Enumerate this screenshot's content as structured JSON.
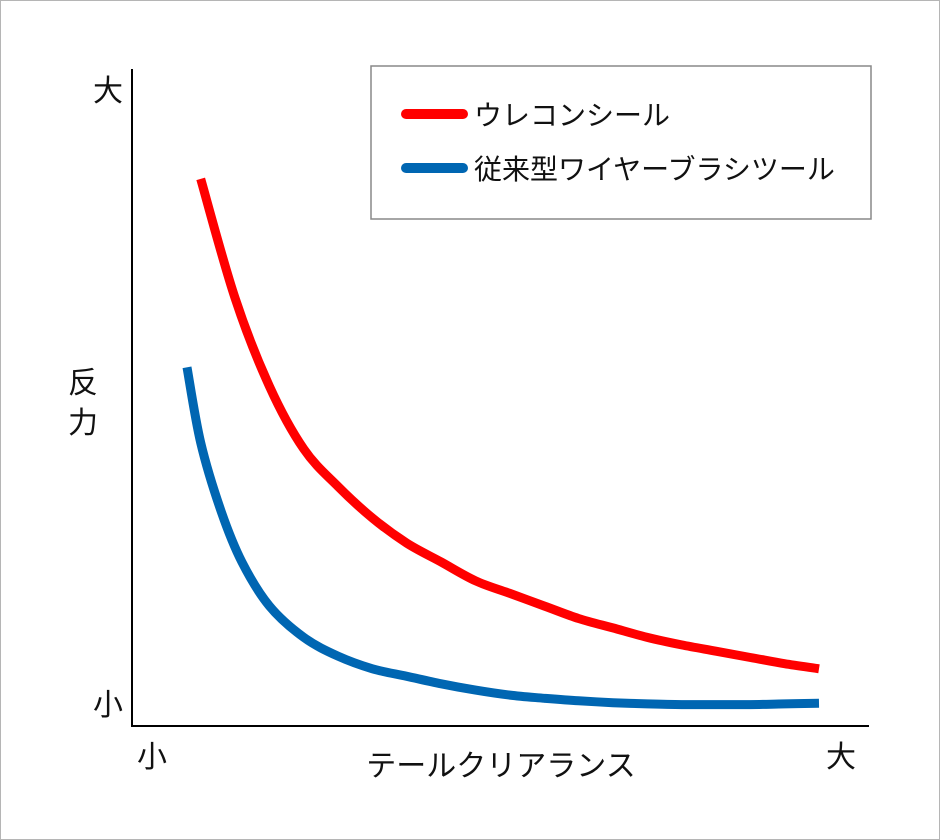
{
  "chart_data": {
    "type": "line",
    "title": "",
    "xlabel": "テールクリアランス",
    "ylabel": "反力",
    "x_tick_labels": {
      "min": "小",
      "max": "大"
    },
    "y_tick_labels": {
      "min": "小",
      "max": "大"
    },
    "xlim": [
      0,
      100
    ],
    "ylim": [
      0,
      100
    ],
    "legend_position": "top-right",
    "grid": false,
    "series": [
      {
        "name": "ウレコンシール",
        "color": "#ff0000",
        "x": [
          10,
          15,
          20,
          25,
          30,
          35,
          40,
          45,
          50,
          55,
          60,
          65,
          70,
          75,
          80,
          85,
          90,
          95,
          100
        ],
        "y": [
          86,
          67,
          53,
          43,
          37,
          32,
          28,
          25,
          22,
          20,
          18,
          16,
          14.5,
          13,
          11.8,
          10.8,
          9.8,
          8.8,
          8
        ]
      },
      {
        "name": "従来型ワイヤーブラシツール",
        "color": "#0066b2",
        "x": [
          8,
          10,
          13,
          16,
          20,
          25,
          30,
          35,
          40,
          45,
          50,
          55,
          60,
          65,
          70,
          75,
          80,
          85,
          90,
          95,
          100
        ],
        "y": [
          56,
          44,
          33,
          25,
          18,
          13,
          10,
          8,
          6.8,
          5.6,
          4.6,
          3.8,
          3.3,
          2.9,
          2.6,
          2.4,
          2.3,
          2.3,
          2.3,
          2.4,
          2.5
        ]
      }
    ]
  }
}
